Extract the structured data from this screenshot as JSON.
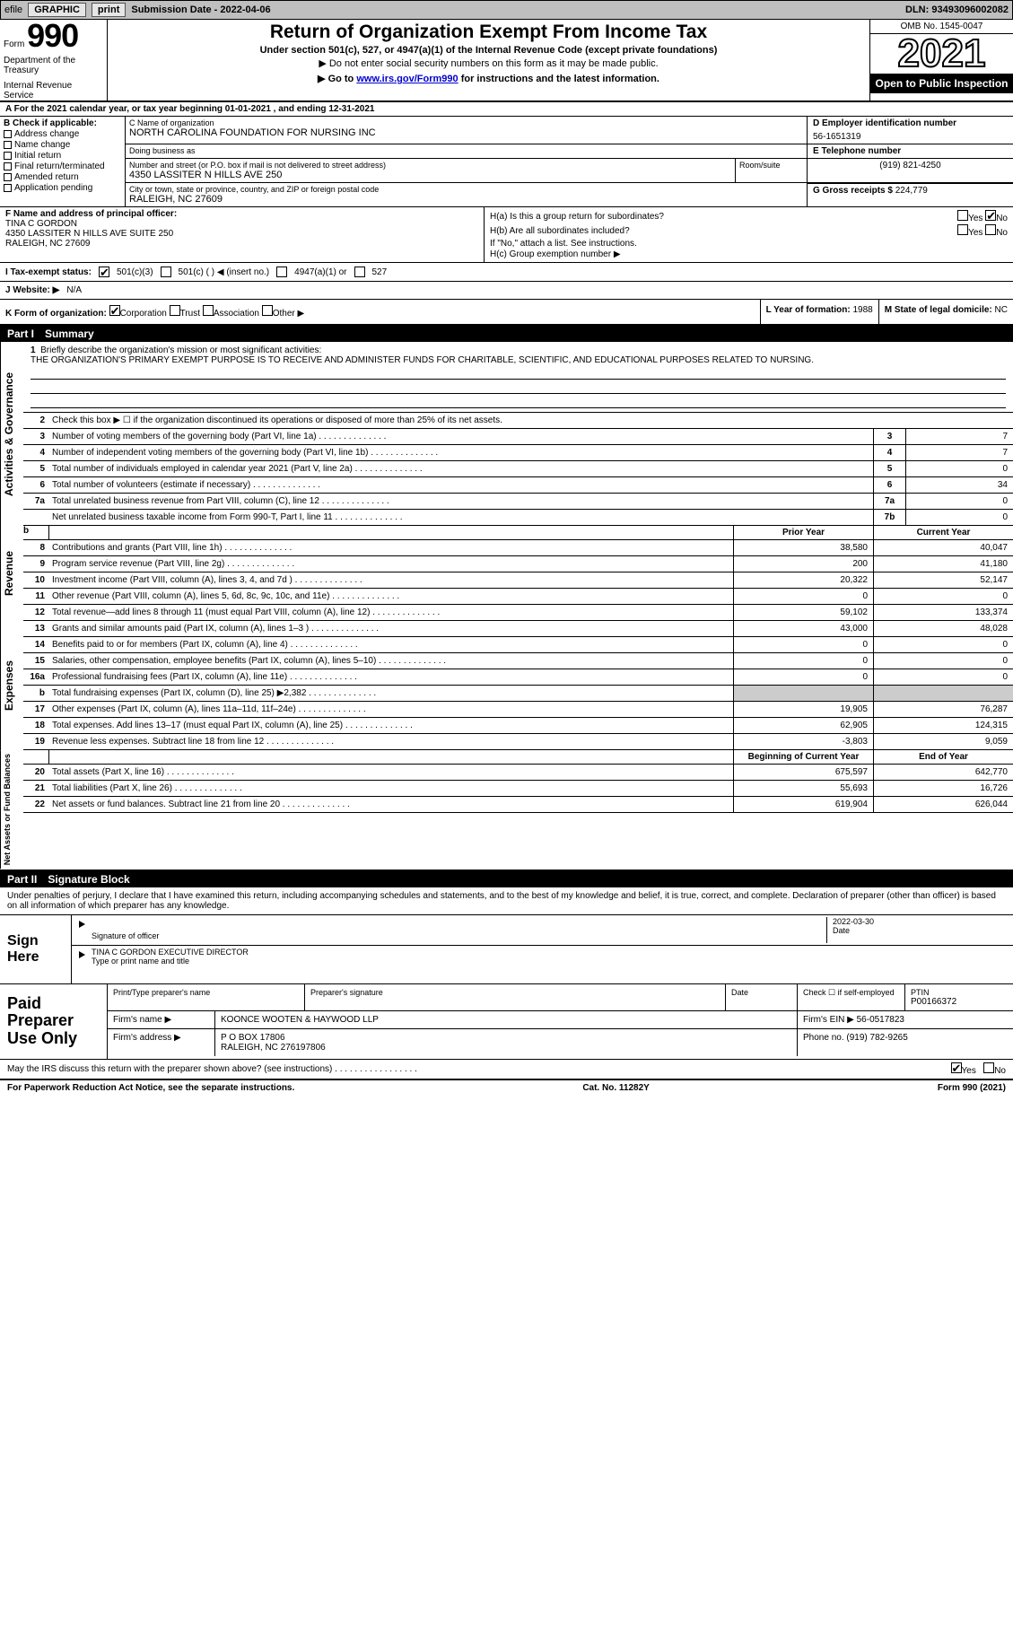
{
  "toolbar": {
    "efile_prefix": "efile",
    "graphic_btn": "GRAPHIC",
    "print_btn": "print",
    "submission_label": "Submission Date - 2022-04-06",
    "dln_label": "DLN: 93493096002082"
  },
  "header": {
    "form_prefix": "Form",
    "form_number": "990",
    "dept": "Department of the Treasury",
    "irs": "Internal Revenue Service",
    "title": "Return of Organization Exempt From Income Tax",
    "subtitle": "Under section 501(c), 527, or 4947(a)(1) of the Internal Revenue Code (except private foundations)",
    "note": "▶ Do not enter social security numbers on this form as it may be made public.",
    "goto_prefix": "▶ Go to ",
    "goto_link": "www.irs.gov/Form990",
    "goto_suffix": " for instructions and the latest information.",
    "omb": "OMB No. 1545-0047",
    "year": "2021",
    "open_public": "Open to Public Inspection"
  },
  "row_a": "A For the 2021 calendar year, or tax year beginning 01-01-2021    , and ending 12-31-2021",
  "section_b": {
    "label": "B Check if applicable:",
    "address_change": "Address change",
    "name_change": "Name change",
    "initial_return": "Initial return",
    "final_return": "Final return/terminated",
    "amended_return": "Amended return",
    "app_pending": "Application pending"
  },
  "section_c": {
    "name_label": "C Name of organization",
    "name_val": "NORTH CAROLINA FOUNDATION FOR NURSING INC",
    "dba_label": "Doing business as",
    "dba_val": "",
    "street_label": "Number and street (or P.O. box if mail is not delivered to street address)",
    "room_label": "Room/suite",
    "street_val": "4350 LASSITER N HILLS AVE 250",
    "city_label": "City or town, state or province, country, and ZIP or foreign postal code",
    "city_val": "RALEIGH, NC  27609"
  },
  "section_d": {
    "ein_label": "D Employer identification number",
    "ein_val": "56-1651319",
    "tel_label": "E Telephone number",
    "tel_val": "(919) 821-4250",
    "gross_label": "G Gross receipts $",
    "gross_val": "224,779"
  },
  "section_f": {
    "label": "F  Name and address of principal officer:",
    "name": "TINA C GORDON",
    "addr1": "4350 LASSITER N HILLS AVE SUITE 250",
    "addr2": "RALEIGH, NC  27609"
  },
  "section_h": {
    "ha_label": "H(a)  Is this a group return for subordinates?",
    "hb_label": "H(b)  Are all subordinates included?",
    "hb_note": "If \"No,\" attach a list. See instructions.",
    "hc_label": "H(c)  Group exemption number ▶",
    "yes": "Yes",
    "no": "No"
  },
  "section_i": {
    "label": "I    Tax-exempt status:",
    "opt1": "501(c)(3)",
    "opt2": "501(c) (   ) ◀ (insert no.)",
    "opt3": "4947(a)(1) or",
    "opt4": "527"
  },
  "section_j": {
    "label": "J   Website: ▶",
    "val": "N/A"
  },
  "section_k": {
    "label": "K Form of organization:",
    "corp": "Corporation",
    "trust": "Trust",
    "assoc": "Association",
    "other": "Other ▶"
  },
  "section_l": {
    "year_label": "L Year of formation:",
    "year_val": "1988",
    "state_label": "M State of legal domicile:",
    "state_val": "NC"
  },
  "parts": {
    "part1_num": "Part I",
    "part1_title": "Summary",
    "part2_num": "Part II",
    "part2_title": "Signature Block"
  },
  "vert_labels": {
    "activities": "Activities & Governance",
    "revenue": "Revenue",
    "expenses": "Expenses",
    "net": "Net Assets or Fund Balances"
  },
  "q1": {
    "num": "1",
    "label": "Briefly describe the organization's mission or most significant activities:",
    "text": "THE ORGANIZATION'S PRIMARY EXEMPT PURPOSE IS TO RECEIVE AND ADMINISTER FUNDS FOR CHARITABLE, SCIENTIFIC, AND EDUCATIONAL PURPOSES RELATED TO NURSING."
  },
  "q2": {
    "num": "2",
    "text": "Check this box ▶ ☐  if the organization discontinued its operations or disposed of more than 25% of its net assets."
  },
  "lines_simple": [
    {
      "num": "3",
      "text": "Number of voting members of the governing body (Part VI, line 1a)",
      "box": "3",
      "val": "7"
    },
    {
      "num": "4",
      "text": "Number of independent voting members of the governing body (Part VI, line 1b)",
      "box": "4",
      "val": "7"
    },
    {
      "num": "5",
      "text": "Total number of individuals employed in calendar year 2021 (Part V, line 2a)",
      "box": "5",
      "val": "0"
    },
    {
      "num": "6",
      "text": "Total number of volunteers (estimate if necessary)",
      "box": "6",
      "val": "34"
    },
    {
      "num": "7a",
      "text": "Total unrelated business revenue from Part VIII, column (C), line 12",
      "box": "7a",
      "val": "0"
    },
    {
      "num": "",
      "text": "Net unrelated business taxable income from Form 990-T, Part I, line 11",
      "box": "7b",
      "val": "0"
    }
  ],
  "fin_headers": {
    "prior": "Prior Year",
    "current": "Current Year",
    "begin": "Beginning of Current Year",
    "end": "End of Year"
  },
  "revenue_rows": [
    {
      "num": "8",
      "text": "Contributions and grants (Part VIII, line 1h)",
      "py": "38,580",
      "cy": "40,047"
    },
    {
      "num": "9",
      "text": "Program service revenue (Part VIII, line 2g)",
      "py": "200",
      "cy": "41,180"
    },
    {
      "num": "10",
      "text": "Investment income (Part VIII, column (A), lines 3, 4, and 7d )",
      "py": "20,322",
      "cy": "52,147"
    },
    {
      "num": "11",
      "text": "Other revenue (Part VIII, column (A), lines 5, 6d, 8c, 9c, 10c, and 11e)",
      "py": "0",
      "cy": "0"
    },
    {
      "num": "12",
      "text": "Total revenue—add lines 8 through 11 (must equal Part VIII, column (A), line 12)",
      "py": "59,102",
      "cy": "133,374"
    }
  ],
  "expense_rows": [
    {
      "num": "13",
      "text": "Grants and similar amounts paid (Part IX, column (A), lines 1–3 )",
      "py": "43,000",
      "cy": "48,028"
    },
    {
      "num": "14",
      "text": "Benefits paid to or for members (Part IX, column (A), line 4)",
      "py": "0",
      "cy": "0"
    },
    {
      "num": "15",
      "text": "Salaries, other compensation, employee benefits (Part IX, column (A), lines 5–10)",
      "py": "0",
      "cy": "0"
    },
    {
      "num": "16a",
      "text": "Professional fundraising fees (Part IX, column (A), line 11e)",
      "py": "0",
      "cy": "0"
    },
    {
      "num": "b",
      "text": "Total fundraising expenses (Part IX, column (D), line 25) ▶2,382",
      "py": "grey",
      "cy": "grey"
    },
    {
      "num": "17",
      "text": "Other expenses (Part IX, column (A), lines 11a–11d, 11f–24e)",
      "py": "19,905",
      "cy": "76,287"
    },
    {
      "num": "18",
      "text": "Total expenses. Add lines 13–17 (must equal Part IX, column (A), line 25)",
      "py": "62,905",
      "cy": "124,315"
    },
    {
      "num": "19",
      "text": "Revenue less expenses. Subtract line 18 from line 12",
      "py": "-3,803",
      "cy": "9,059"
    }
  ],
  "net_rows": [
    {
      "num": "20",
      "text": "Total assets (Part X, line 16)",
      "py": "675,597",
      "cy": "642,770"
    },
    {
      "num": "21",
      "text": "Total liabilities (Part X, line 26)",
      "py": "55,693",
      "cy": "16,726"
    },
    {
      "num": "22",
      "text": "Net assets or fund balances. Subtract line 21 from line 20",
      "py": "619,904",
      "cy": "626,044"
    }
  ],
  "sig_intro": "Under penalties of perjury, I declare that I have examined this return, including accompanying schedules and statements, and to the best of my knowledge and belief, it is true, correct, and complete. Declaration of preparer (other than officer) is based on all information of which preparer has any knowledge.",
  "sign": {
    "sign_here": "Sign Here",
    "sig_officer_label": "Signature of officer",
    "sig_date": "2022-03-30",
    "date_label": "Date",
    "officer_name": "TINA C GORDON  EXECUTIVE DIRECTOR",
    "officer_label": "Type or print name and title"
  },
  "paid": {
    "paid_label": "Paid Preparer Use Only",
    "print_label": "Print/Type preparer's name",
    "sig_label": "Preparer's signature",
    "date_label": "Date",
    "check_label": "Check ☐ if self-employed",
    "ptin_label": "PTIN",
    "ptin_val": "P00166372",
    "firm_name_label": "Firm's name   ▶",
    "firm_name_val": "KOONCE WOOTEN & HAYWOOD LLP",
    "firm_ein_label": "Firm's EIN ▶",
    "firm_ein_val": "56-0517823",
    "firm_addr_label": "Firm's address ▶",
    "firm_addr_val1": "P O BOX 17806",
    "firm_addr_val2": "RALEIGH, NC  276197806",
    "phone_label": "Phone no.",
    "phone_val": "(919) 782-9265"
  },
  "discuss": {
    "text": "May the IRS discuss this return with the preparer shown above? (see instructions)",
    "yes": "Yes",
    "no": "No"
  },
  "footer": {
    "left": "For Paperwork Reduction Act Notice, see the separate instructions.",
    "mid": "Cat. No. 11282Y",
    "right": "Form 990 (2021)"
  }
}
